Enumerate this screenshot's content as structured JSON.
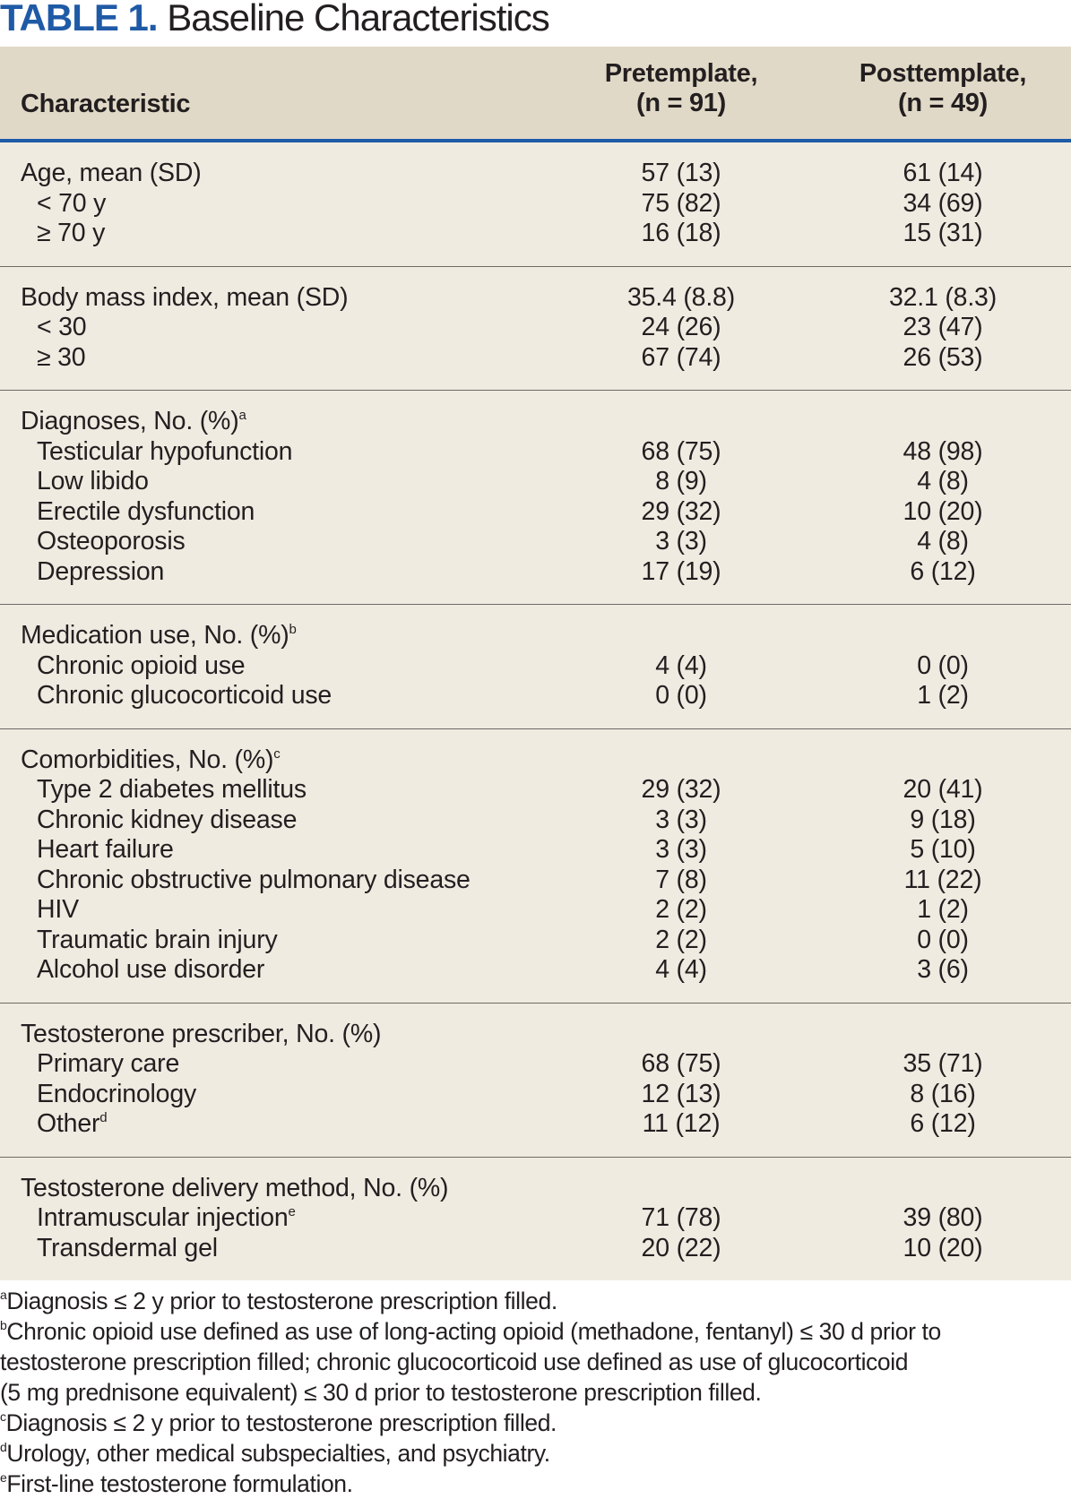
{
  "title": {
    "label": "TABLE 1.",
    "text": "Baseline Characteristics"
  },
  "colors": {
    "accent": "#1f5aa6",
    "header_bg": "#e1d9c7",
    "body_bg": "#efebe1"
  },
  "header": {
    "characteristic": "Characteristic",
    "pre": [
      "Pretemplate,",
      "(n = 91)"
    ],
    "post": [
      "Posttemplate,",
      "(n = 49)"
    ]
  },
  "sections": [
    {
      "rows": [
        {
          "label": "Age, mean (SD)",
          "sup": "",
          "sub": false,
          "pre": "57 (13)",
          "post": "61 (14)"
        },
        {
          "label": "< 70 y",
          "sup": "",
          "sub": true,
          "pre": "75 (82)",
          "post": "34 (69)"
        },
        {
          "label": "≥ 70 y",
          "sup": "",
          "sub": true,
          "pre": "16 (18)",
          "post": "15 (31)"
        }
      ]
    },
    {
      "rows": [
        {
          "label": "Body mass index, mean (SD)",
          "sup": "",
          "sub": false,
          "pre": "35.4 (8.8)",
          "post": "32.1 (8.3)"
        },
        {
          "label": "< 30",
          "sup": "",
          "sub": true,
          "pre": "24 (26)",
          "post": "23 (47)"
        },
        {
          "label": "≥ 30",
          "sup": "",
          "sub": true,
          "pre": "67 (74)",
          "post": "26 (53)"
        }
      ]
    },
    {
      "rows": [
        {
          "label": "Diagnoses, No. (%)",
          "sup": "a",
          "sub": false,
          "pre": "",
          "post": ""
        },
        {
          "label": "Testicular hypofunction",
          "sup": "",
          "sub": true,
          "pre": "68 (75)",
          "post": "48 (98)"
        },
        {
          "label": "Low libido",
          "sup": "",
          "sub": true,
          "pre": "8 (9)",
          "post": "4 (8)"
        },
        {
          "label": "Erectile dysfunction",
          "sup": "",
          "sub": true,
          "pre": "29 (32)",
          "post": "10 (20)"
        },
        {
          "label": "Osteoporosis",
          "sup": "",
          "sub": true,
          "pre": "3 (3)",
          "post": "4 (8)"
        },
        {
          "label": "Depression",
          "sup": "",
          "sub": true,
          "pre": "17 (19)",
          "post": "6 (12)"
        }
      ]
    },
    {
      "rows": [
        {
          "label": "Medication use, No. (%)",
          "sup": "b",
          "sub": false,
          "pre": "",
          "post": ""
        },
        {
          "label": "Chronic opioid use",
          "sup": "",
          "sub": true,
          "pre": "4 (4)",
          "post": "0 (0)"
        },
        {
          "label": "Chronic glucocorticoid use",
          "sup": "",
          "sub": true,
          "pre": "0 (0)",
          "post": "1 (2)"
        }
      ]
    },
    {
      "rows": [
        {
          "label": "Comorbidities, No. (%)",
          "sup": "c",
          "sub": false,
          "pre": "",
          "post": ""
        },
        {
          "label": "Type 2 diabetes mellitus",
          "sup": "",
          "sub": true,
          "pre": "29 (32)",
          "post": "20 (41)"
        },
        {
          "label": "Chronic kidney disease",
          "sup": "",
          "sub": true,
          "pre": "3 (3)",
          "post": "9 (18)"
        },
        {
          "label": "Heart failure",
          "sup": "",
          "sub": true,
          "pre": "3 (3)",
          "post": "5 (10)"
        },
        {
          "label": "Chronic obstructive pulmonary disease",
          "sup": "",
          "sub": true,
          "pre": "7 (8)",
          "post": "11 (22)"
        },
        {
          "label": "HIV",
          "sup": "",
          "sub": true,
          "pre": "2 (2)",
          "post": "1 (2)"
        },
        {
          "label": "Traumatic brain injury",
          "sup": "",
          "sub": true,
          "pre": "2 (2)",
          "post": "0 (0)"
        },
        {
          "label": "Alcohol use disorder",
          "sup": "",
          "sub": true,
          "pre": "4 (4)",
          "post": "3 (6)"
        }
      ]
    },
    {
      "rows": [
        {
          "label": "Testosterone prescriber, No. (%)",
          "sup": "",
          "sub": false,
          "pre": "",
          "post": ""
        },
        {
          "label": "Primary care",
          "sup": "",
          "sub": true,
          "pre": "68 (75)",
          "post": "35 (71)"
        },
        {
          "label": "Endocrinology",
          "sup": "",
          "sub": true,
          "pre": "12 (13)",
          "post": "8 (16)"
        },
        {
          "label": "Other",
          "sup": "d",
          "sub": true,
          "pre": "11 (12)",
          "post": "6 (12)"
        }
      ]
    },
    {
      "rows": [
        {
          "label": "Testosterone delivery method, No. (%)",
          "sup": "",
          "sub": false,
          "pre": "",
          "post": ""
        },
        {
          "label": "Intramuscular injection",
          "sup": "e",
          "sub": true,
          "pre": "71 (78)",
          "post": "39 (80)"
        },
        {
          "label": "Transdermal gel",
          "sup": "",
          "sub": true,
          "pre": "20 (22)",
          "post": "10 (20)"
        }
      ]
    }
  ],
  "footnotes": [
    {
      "mark": "a",
      "lines": [
        "Diagnosis ≤ 2 y prior to testosterone prescription filled."
      ]
    },
    {
      "mark": "b",
      "lines": [
        "Chronic opioid use defined as use of long-acting opioid (methadone, fentanyl) ≤ 30 d prior to",
        "testosterone prescription filled; chronic glucocorticoid use defined as use of glucocorticoid",
        "(5 mg prednisone equivalent) ≤ 30 d prior to testosterone prescription filled."
      ]
    },
    {
      "mark": "c",
      "lines": [
        "Diagnosis ≤ 2 y prior to testosterone prescription filled."
      ]
    },
    {
      "mark": "d",
      "lines": [
        "Urology, other medical subspecialties, and psychiatry."
      ]
    },
    {
      "mark": "e",
      "lines": [
        "First-line testosterone formulation."
      ]
    }
  ]
}
